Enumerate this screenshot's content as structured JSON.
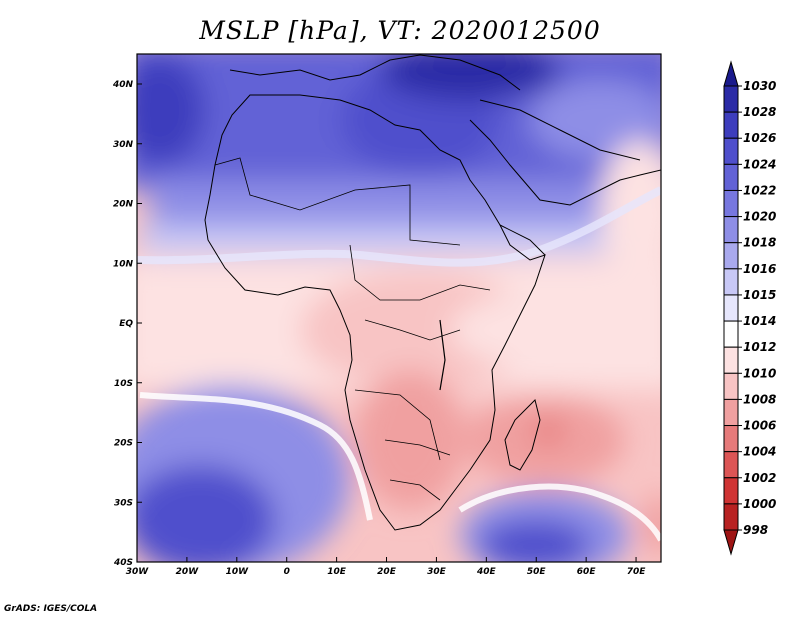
{
  "title": "MSLP [hPa], VT: 2020012500",
  "credit": "GrADS: IGES/COLA",
  "lon_ticks": [
    "30W",
    "20W",
    "10W",
    "0",
    "10E",
    "20E",
    "30E",
    "40E",
    "50E",
    "60E",
    "70E"
  ],
  "lat_ticks": [
    "40N",
    "30N",
    "20N",
    "10N",
    "EQ",
    "10S",
    "20S",
    "30S",
    "40S"
  ],
  "colorbar": {
    "levels": [
      "1030",
      "1028",
      "1026",
      "1024",
      "1022",
      "1020",
      "1018",
      "1016",
      "1015",
      "1014",
      "1012",
      "1010",
      "1008",
      "1006",
      "1004",
      "1002",
      "1000",
      "998"
    ],
    "colors": [
      "#1a1a8c",
      "#2b2ba6",
      "#3d3dbd",
      "#4f4fcc",
      "#6262d6",
      "#7777df",
      "#8e8ee6",
      "#a9a9ee",
      "#c8c8f6",
      "#e6e6fc",
      "#ffffff",
      "#fde2e2",
      "#f8c4c4",
      "#f0a0a0",
      "#e67a7a",
      "#dc5555",
      "#cf3434",
      "#b82222",
      "#9e1414"
    ]
  },
  "colors": {
    "high_pressure": "#4f4fcc",
    "low_pressure": "#f0a0a0",
    "neutral": "#ffffff"
  }
}
